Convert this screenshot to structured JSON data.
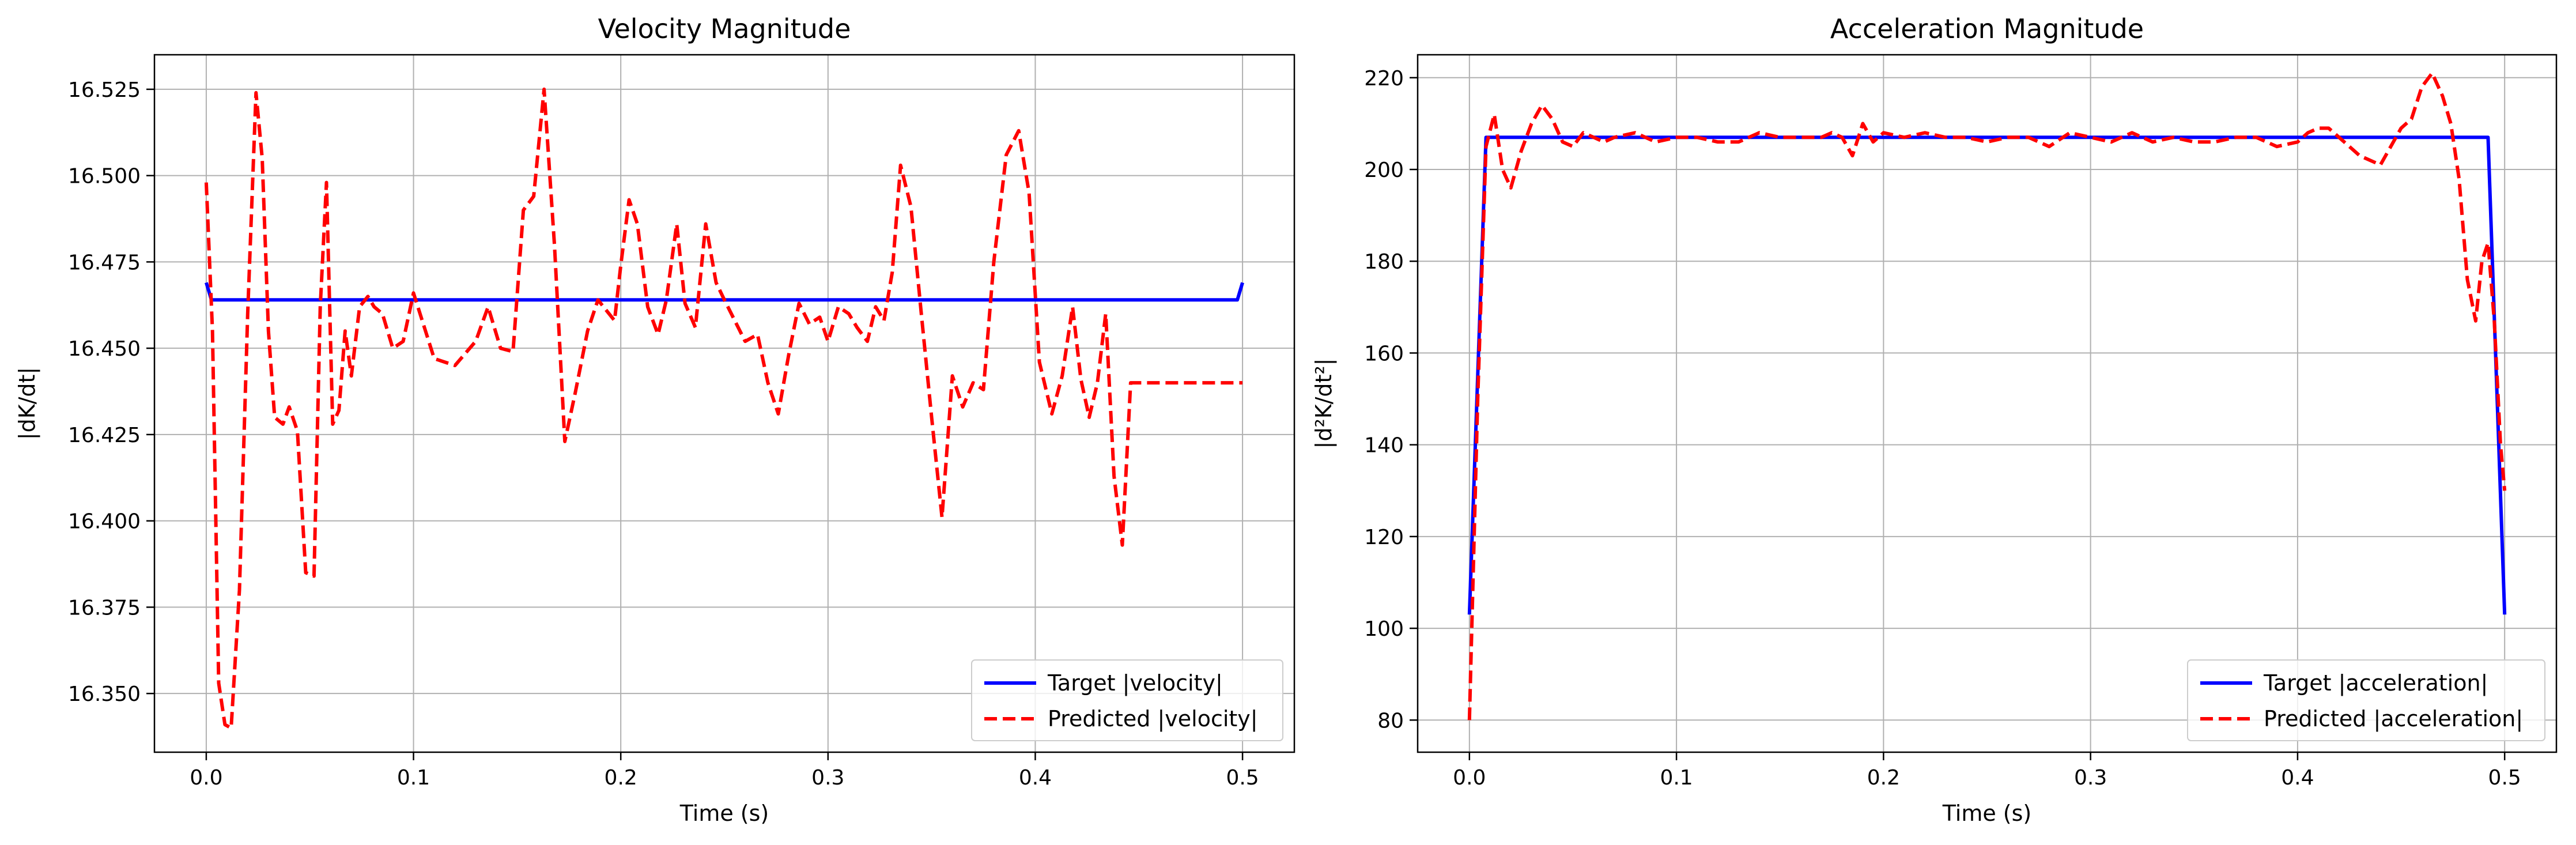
{
  "chart_data": [
    {
      "type": "line",
      "title": "Velocity Magnitude",
      "xlabel": "Time (s)",
      "ylabel": "|dK/dt|",
      "xlim": [
        -0.025,
        0.525
      ],
      "ylim": [
        16.333,
        16.535
      ],
      "xticks": [
        "0.0",
        "0.1",
        "0.2",
        "0.3",
        "0.4",
        "0.5"
      ],
      "yticks": [
        "16.350",
        "16.375",
        "16.400",
        "16.425",
        "16.450",
        "16.475",
        "16.500",
        "16.525"
      ],
      "grid": true,
      "legend_position": "lower-right",
      "series": [
        {
          "name": "Target |velocity|",
          "color": "#0000ff",
          "style": "solid",
          "x": [
            0.0,
            0.0025,
            0.1,
            0.2,
            0.3,
            0.4,
            0.4975,
            0.5
          ],
          "y": [
            16.469,
            16.464,
            16.464,
            16.464,
            16.464,
            16.464,
            16.464,
            16.469
          ]
        },
        {
          "name": "Predicted |velocity|",
          "color": "#ff0000",
          "style": "dashed",
          "x": [
            0.0,
            0.003,
            0.006,
            0.009,
            0.012,
            0.016,
            0.02,
            0.024,
            0.027,
            0.03,
            0.033,
            0.037,
            0.04,
            0.044,
            0.048,
            0.052,
            0.055,
            0.058,
            0.061,
            0.064,
            0.067,
            0.07,
            0.074,
            0.078,
            0.081,
            0.085,
            0.09,
            0.095,
            0.1,
            0.11,
            0.12,
            0.13,
            0.136,
            0.142,
            0.148,
            0.153,
            0.158,
            0.163,
            0.168,
            0.173,
            0.178,
            0.184,
            0.189,
            0.193,
            0.197,
            0.2,
            0.204,
            0.208,
            0.213,
            0.218,
            0.222,
            0.227,
            0.231,
            0.236,
            0.241,
            0.246,
            0.25,
            0.255,
            0.26,
            0.266,
            0.271,
            0.276,
            0.281,
            0.286,
            0.291,
            0.296,
            0.3,
            0.305,
            0.31,
            0.314,
            0.319,
            0.323,
            0.327,
            0.331,
            0.335,
            0.34,
            0.345,
            0.35,
            0.355,
            0.36,
            0.365,
            0.37,
            0.375,
            0.38,
            0.386,
            0.392,
            0.397,
            0.402,
            0.408,
            0.413,
            0.418,
            0.422,
            0.426,
            0.43,
            0.434,
            0.438,
            0.442,
            0.446,
            0.45,
            0.455,
            0.46,
            0.464,
            0.468,
            0.471,
            0.474,
            0.477,
            0.48,
            0.483,
            0.486,
            0.489,
            0.492,
            0.495,
            0.5
          ],
          "y": [
            16.498,
            16.455,
            16.353,
            16.341,
            16.34,
            16.38,
            16.46,
            16.524,
            16.505,
            16.455,
            16.43,
            16.428,
            16.433,
            16.426,
            16.385,
            16.384,
            16.462,
            16.498,
            16.428,
            16.432,
            16.455,
            16.442,
            16.462,
            16.465,
            16.462,
            16.46,
            16.45,
            16.452,
            16.466,
            16.447,
            16.445,
            16.452,
            16.462,
            16.45,
            16.449,
            16.49,
            16.494,
            16.525,
            16.48,
            16.423,
            16.437,
            16.455,
            16.464,
            16.461,
            16.458,
            16.474,
            16.493,
            16.486,
            16.462,
            16.454,
            16.464,
            16.486,
            16.463,
            16.456,
            16.486,
            16.469,
            16.464,
            16.458,
            16.452,
            16.454,
            16.44,
            16.431,
            16.448,
            16.463,
            16.457,
            16.459,
            16.452,
            16.462,
            16.46,
            16.456,
            16.452,
            16.462,
            16.458,
            16.472,
            16.503,
            16.491,
            16.46,
            16.43,
            16.401,
            16.442,
            16.433,
            16.44,
            16.438,
            16.475,
            16.506,
            16.513,
            16.495,
            16.446,
            16.431,
            16.442,
            16.462,
            16.441,
            16.43,
            16.44,
            16.46,
            16.413,
            16.393,
            16.44,
            16.44,
            16.44,
            16.44,
            16.44,
            16.44,
            16.44,
            16.44,
            16.44,
            16.44,
            16.44,
            16.44,
            16.44,
            16.44,
            16.44,
            16.44
          ]
        }
      ]
    },
    {
      "type": "line",
      "title": "Acceleration Magnitude",
      "xlabel": "Time (s)",
      "ylabel": "|d²K/dt²|",
      "xlim": [
        -0.025,
        0.525
      ],
      "ylim": [
        73,
        225
      ],
      "xticks": [
        "0.0",
        "0.1",
        "0.2",
        "0.3",
        "0.4",
        "0.5"
      ],
      "yticks": [
        "80",
        "100",
        "120",
        "140",
        "160",
        "180",
        "200",
        "220"
      ],
      "grid": true,
      "legend_position": "lower-right",
      "series": [
        {
          "name": "Target |acceleration|",
          "color": "#0000ff",
          "style": "solid",
          "x": [
            0.0,
            0.008,
            0.1,
            0.2,
            0.3,
            0.4,
            0.492,
            0.5
          ],
          "y": [
            103,
            207,
            207,
            207,
            207,
            207,
            207,
            103
          ]
        },
        {
          "name": "Predicted |acceleration|",
          "color": "#ff0000",
          "style": "dashed",
          "x": [
            0.0,
            0.004,
            0.008,
            0.012,
            0.016,
            0.02,
            0.025,
            0.03,
            0.035,
            0.04,
            0.045,
            0.05,
            0.055,
            0.06,
            0.065,
            0.07,
            0.08,
            0.09,
            0.1,
            0.11,
            0.12,
            0.13,
            0.14,
            0.15,
            0.16,
            0.17,
            0.175,
            0.18,
            0.185,
            0.19,
            0.195,
            0.2,
            0.21,
            0.22,
            0.23,
            0.24,
            0.25,
            0.26,
            0.27,
            0.28,
            0.29,
            0.3,
            0.31,
            0.32,
            0.33,
            0.34,
            0.35,
            0.36,
            0.37,
            0.38,
            0.39,
            0.4,
            0.405,
            0.41,
            0.415,
            0.42,
            0.425,
            0.43,
            0.435,
            0.44,
            0.445,
            0.45,
            0.455,
            0.46,
            0.465,
            0.47,
            0.474,
            0.478,
            0.482,
            0.486,
            0.489,
            0.492,
            0.495,
            0.498,
            0.5
          ],
          "y": [
            80,
            150,
            205,
            212,
            200,
            196,
            204,
            210,
            214,
            211,
            206,
            205,
            208,
            207,
            206,
            207,
            208,
            206,
            207,
            207,
            206,
            206,
            208,
            207,
            207,
            207,
            208,
            207,
            203,
            210,
            206,
            208,
            207,
            208,
            207,
            207,
            206,
            207,
            207,
            205,
            208,
            207,
            206,
            208,
            206,
            207,
            206,
            206,
            207,
            207,
            205,
            206,
            208,
            209,
            209,
            207,
            205,
            203,
            202,
            201,
            205,
            209,
            211,
            218,
            221,
            216,
            210,
            198,
            176,
            167,
            180,
            184,
            167,
            140,
            130
          ]
        }
      ]
    }
  ]
}
